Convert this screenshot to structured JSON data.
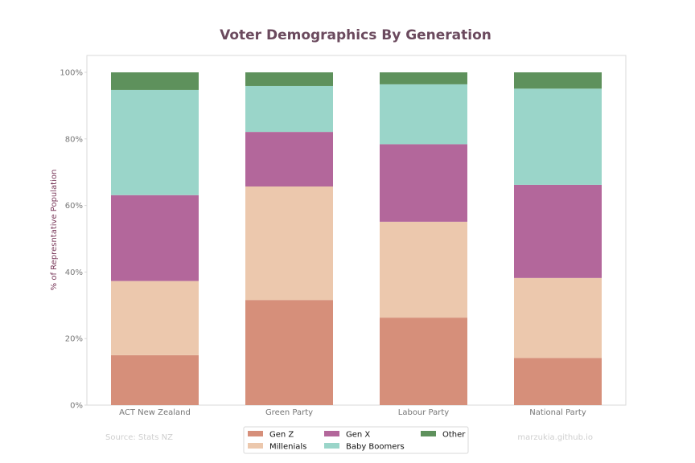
{
  "chart_data": {
    "type": "bar",
    "stacked": true,
    "title": "Voter Demographics By Generation",
    "xlabel": "",
    "ylabel": "% of Represntative Population",
    "ylim": [
      0,
      100
    ],
    "y_tick_format": "percent",
    "yticks": [
      "0%",
      "20%",
      "40%",
      "60%",
      "80%",
      "100%"
    ],
    "ytick_values": [
      0,
      20,
      40,
      60,
      80,
      100
    ],
    "grid": false,
    "legend_placement": "bottom-center",
    "categories": [
      "ACT New Zealand",
      "Green Party",
      "Labour Party",
      "National Party"
    ],
    "series": [
      {
        "name": "Gen Z",
        "color": "#d68f7a",
        "values": [
          15.0,
          31.6,
          26.3,
          14.2
        ]
      },
      {
        "name": "Millenials",
        "color": "#ecc8ad",
        "values": [
          22.3,
          34.1,
          28.8,
          24.0
        ]
      },
      {
        "name": "Gen X",
        "color": "#b3679b",
        "values": [
          25.8,
          16.4,
          23.3,
          28.0
        ]
      },
      {
        "name": "Baby Boomers",
        "color": "#9ad5c9",
        "values": [
          31.6,
          13.8,
          18.0,
          28.9
        ]
      },
      {
        "name": "Other",
        "color": "#5e915c",
        "values": [
          5.3,
          4.1,
          3.6,
          4.9
        ]
      }
    ]
  },
  "source_left": "Source: Stats NZ",
  "source_right": "marzukia.github.io",
  "colors": {
    "title": "#6b4a5e",
    "ylabel": "#7b3b5c",
    "axis_frame": "#d9d9d9",
    "tick_text": "#777777",
    "source_text": "#cfcfcf"
  }
}
